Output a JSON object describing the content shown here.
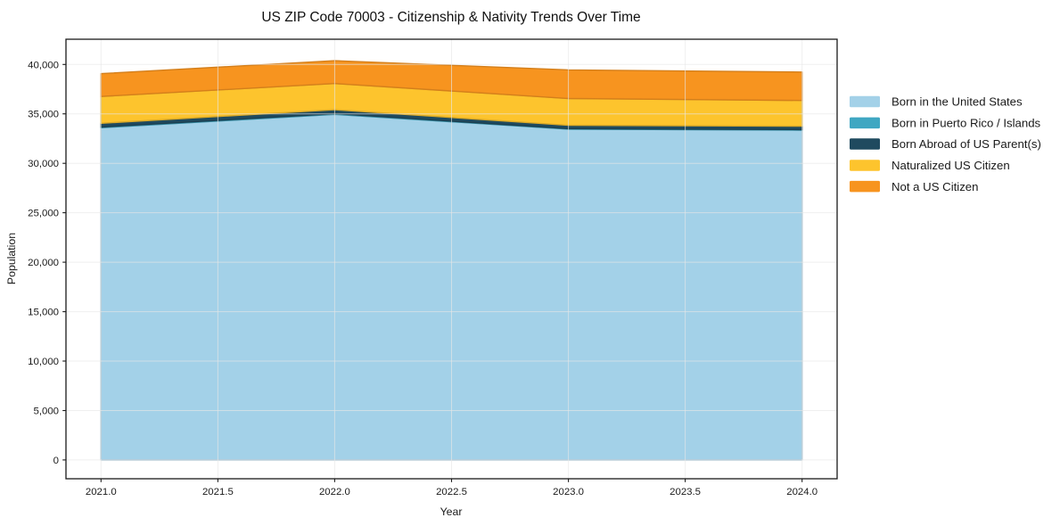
{
  "chart_data": {
    "type": "area",
    "stacked": true,
    "title": "US ZIP Code 70003 - Citizenship & Nativity Trends Over Time",
    "xlabel": "Year",
    "ylabel": "Population",
    "x": [
      2021,
      2022,
      2023,
      2024
    ],
    "series": [
      {
        "name": "Born in the United States",
        "color": "#a3d1e8",
        "values": [
          33600,
          34950,
          33450,
          33350
        ]
      },
      {
        "name": "Born in Puerto Rico / Islands",
        "color": "#3fa7c2",
        "values": [
          70,
          70,
          60,
          60
        ]
      },
      {
        "name": "Born Abroad of US Parent(s)",
        "color": "#1f4a5f",
        "values": [
          380,
          400,
          340,
          340
        ]
      },
      {
        "name": "Naturalized US Citizen",
        "color": "#fdc42d",
        "values": [
          2710,
          2650,
          2700,
          2610
        ]
      },
      {
        "name": "Not a US Citizen",
        "color": "#f7941f",
        "values": [
          2310,
          2310,
          2900,
          2870
        ]
      }
    ],
    "totals": [
      39070,
      40380,
      39450,
      39230
    ],
    "xticks": [
      2021.0,
      2021.5,
      2022.0,
      2022.5,
      2023.0,
      2023.5,
      2024.0
    ],
    "xtick_labels": [
      "2021.0",
      "2021.5",
      "2022.0",
      "2022.5",
      "2023.0",
      "2023.5",
      "2024.0"
    ],
    "yticks": [
      0,
      5000,
      10000,
      15000,
      20000,
      25000,
      30000,
      35000,
      40000
    ],
    "ytick_labels": [
      "0",
      "5,000",
      "10,000",
      "15,000",
      "20,000",
      "25,000",
      "30,000",
      "35,000",
      "40,000"
    ],
    "xlim": [
      2020.85,
      2024.15
    ],
    "ylim": [
      -1900,
      42550
    ],
    "grid": true,
    "grid_color": "#e6e6e6",
    "axis_color": "#1a1a1a",
    "legend_position": "right-outside"
  }
}
